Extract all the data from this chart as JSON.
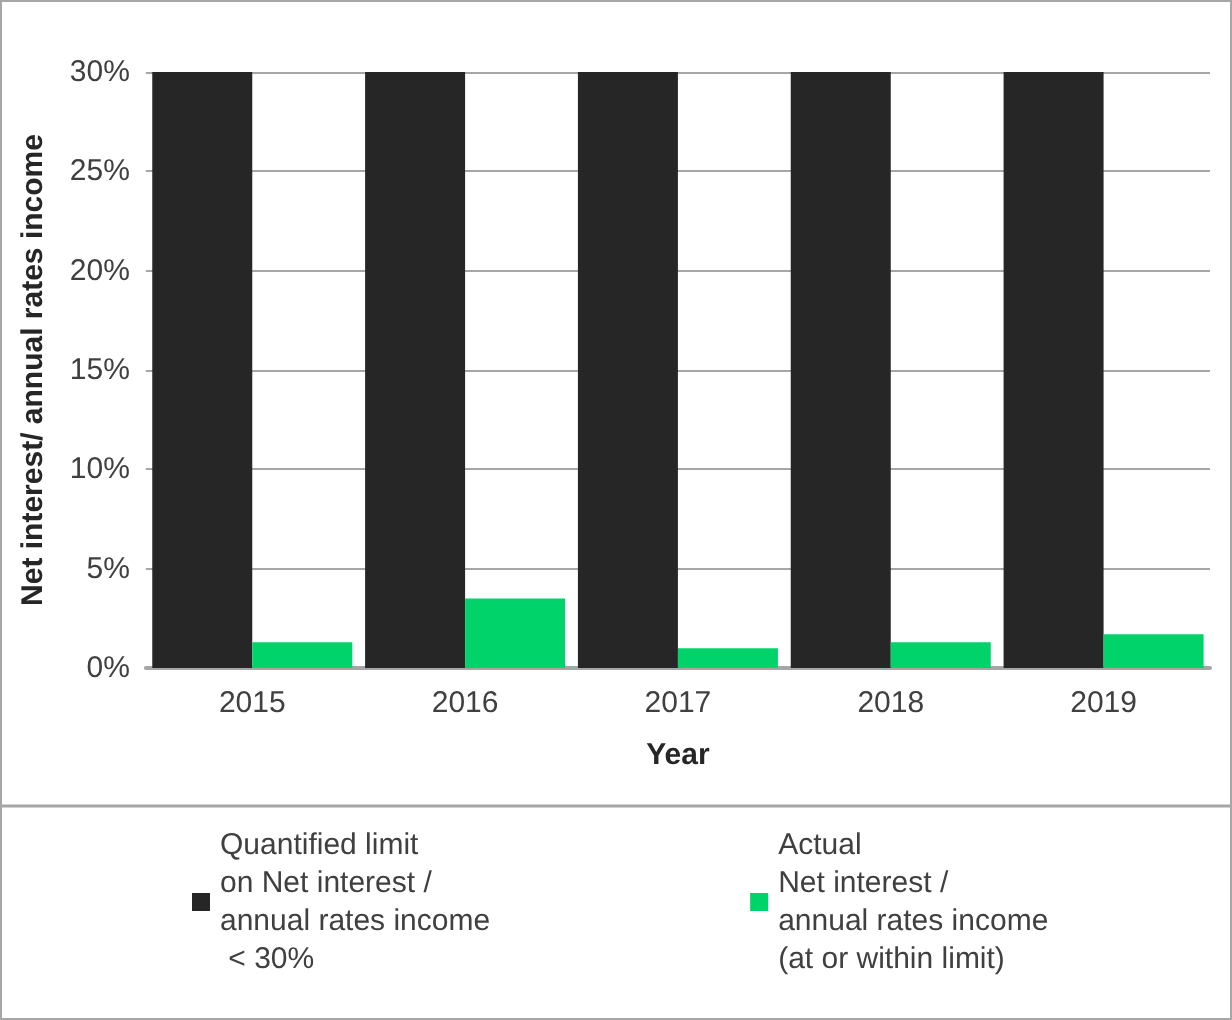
{
  "chart_data": {
    "type": "bar",
    "xlabel": "Year",
    "ylabel": "Net interest/ annual rates income",
    "categories": [
      "2015",
      "2016",
      "2017",
      "2018",
      "2019"
    ],
    "series": [
      {
        "name": "Quantified limit\non Net interest /\nannual rates income\n < 30%",
        "color": "#262626",
        "values": [
          30,
          30,
          30,
          30,
          30
        ]
      },
      {
        "name": "Actual\nNet interest /\nannual rates income\n(at or within limit)",
        "color": "#00d36a",
        "values": [
          1.3,
          3.5,
          1.0,
          1.3,
          1.7
        ]
      }
    ],
    "ylim": [
      0,
      30
    ],
    "yticks": [
      {
        "value": 0,
        "label": "0%"
      },
      {
        "value": 5,
        "label": "5%"
      },
      {
        "value": 10,
        "label": "10%"
      },
      {
        "value": 15,
        "label": "15%"
      },
      {
        "value": 20,
        "label": "20%"
      },
      {
        "value": 25,
        "label": "25%"
      },
      {
        "value": 30,
        "label": "30%"
      }
    ],
    "grid": "y",
    "legend": "bottom"
  }
}
